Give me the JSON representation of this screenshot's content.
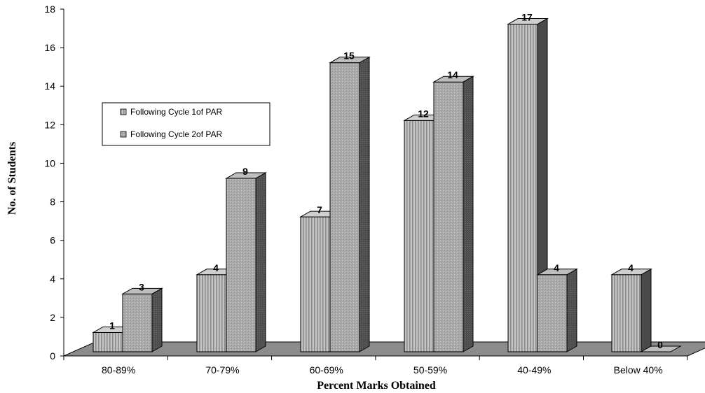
{
  "chart_data": {
    "type": "bar",
    "categories": [
      "80-89%",
      "70-79%",
      "60-69%",
      "50-59%",
      "40-49%",
      "Below 40%"
    ],
    "series": [
      {
        "name": "Following Cycle 1of PAR",
        "values": [
          1,
          4,
          7,
          12,
          17,
          4
        ]
      },
      {
        "name": "Following Cycle 2of PAR",
        "values": [
          3,
          9,
          15,
          14,
          4,
          0
        ]
      }
    ],
    "title": "",
    "xlabel": "Percent Marks Obtained",
    "ylabel": "No. of Students",
    "ylim": [
      0,
      18
    ],
    "yticks": [
      0,
      2,
      4,
      6,
      8,
      10,
      12,
      14,
      16,
      18
    ],
    "grid": false,
    "legend": "left-middle",
    "three_d": true,
    "colors": {
      "series1_face": "#b9b9b9",
      "series1_stripe": "#8f8f8f",
      "series2_face": "#a8a8a8",
      "floor": "#8c8c8c",
      "side": "#5a5a5a",
      "top": "#cfcfcf"
    }
  }
}
